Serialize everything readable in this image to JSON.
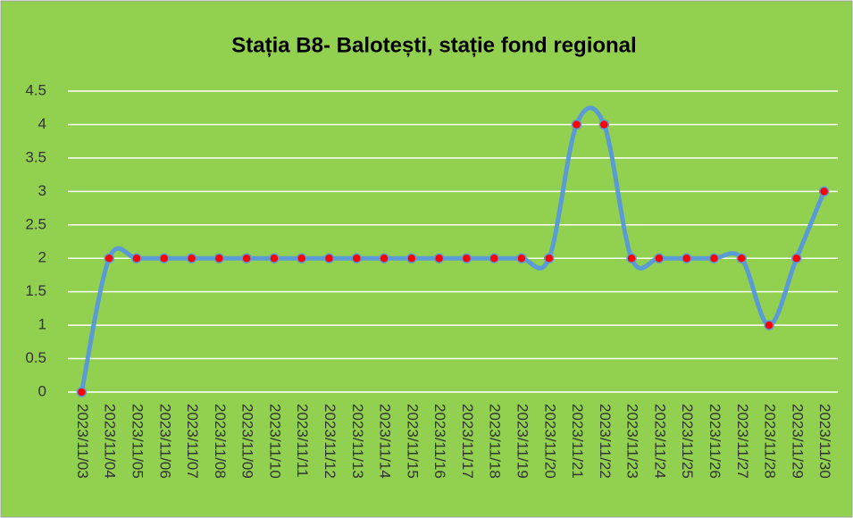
{
  "chart_data": {
    "type": "line",
    "title": "Stația B8-  Balotești, stație fond regional",
    "categories": [
      "2023/11/03",
      "2023/11/04",
      "2023/11/05",
      "2023/11/06",
      "2023/11/07",
      "2023/11/08",
      "2023/11/09",
      "2023/11/10",
      "2023/11/11",
      "2023/11/12",
      "2023/11/13",
      "2023/11/14",
      "2023/11/15",
      "2023/11/16",
      "2023/11/17",
      "2023/11/18",
      "2023/11/19",
      "2023/11/20",
      "2023/11/21",
      "2023/11/22",
      "2023/11/23",
      "2023/11/24",
      "2023/11/25",
      "2023/11/26",
      "2023/11/27",
      "2023/11/28",
      "2023/11/29",
      "2023/11/30"
    ],
    "values": [
      0,
      2,
      2,
      2,
      2,
      2,
      2,
      2,
      2,
      2,
      2,
      2,
      2,
      2,
      2,
      2,
      2,
      2,
      4,
      4,
      2,
      2,
      2,
      2,
      2,
      1,
      2,
      3
    ],
    "color": "#5b9bd5",
    "marker_color": "#ff0000",
    "smooth": true,
    "ylim": [
      0,
      4.5
    ],
    "yticks": [
      0,
      0.5,
      1,
      1.5,
      2,
      2.5,
      3,
      3.5,
      4,
      4.5
    ],
    "grid": true
  }
}
